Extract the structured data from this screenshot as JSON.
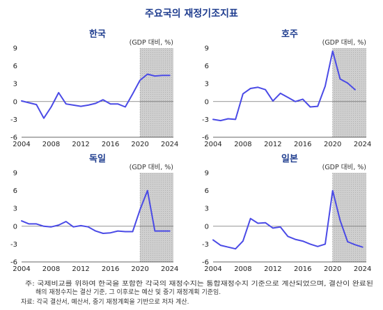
{
  "title": "주요국의 재정기조지표",
  "unit_label": "(GDP 대비, %)",
  "notes": {
    "note_line1": "주:  국제비교를 위하여 한국을 포함한 각국의 재정수지는 통합재정수지 기준으로 계산되었으며, 결산이 완료된",
    "note_line2": "해의 재정수지는 결산 기준, 그 이후로는 예산 및 중기 재정계획 기준임.",
    "source": "자료: 각국 결산서, 예산서, 중기 재정계획을 기반으로 저자 계산."
  },
  "style": {
    "line_color": "#4a4ae6",
    "shade_color": "#cfcfcf",
    "title_color": "#1f3d8f"
  },
  "chart_data": [
    {
      "type": "line",
      "title": "한국",
      "x": [
        2004,
        2005,
        2006,
        2007,
        2008,
        2009,
        2010,
        2011,
        2012,
        2013,
        2014,
        2015,
        2016,
        2017,
        2018,
        2019,
        2020,
        2021,
        2022,
        2023,
        2024
      ],
      "values": [
        0.1,
        -0.2,
        -0.5,
        -2.8,
        -0.9,
        1.5,
        -0.4,
        -0.6,
        -0.8,
        -0.6,
        -0.3,
        0.3,
        -0.4,
        -0.4,
        -0.9,
        1.3,
        3.6,
        4.6,
        4.3,
        4.4,
        4.4
      ],
      "xlim": [
        2004,
        2024.5
      ],
      "ylim": [
        -6,
        9
      ],
      "xticks": [
        2004,
        2008,
        2012,
        2016,
        2020,
        2024
      ],
      "yticks": [
        -6,
        -3,
        0,
        3,
        6,
        9
      ],
      "shaded_from": 2020,
      "grid": false
    },
    {
      "type": "line",
      "title": "호주",
      "x": [
        2004,
        2005,
        2006,
        2007,
        2008,
        2009,
        2010,
        2011,
        2012,
        2013,
        2014,
        2015,
        2016,
        2017,
        2018,
        2019,
        2020,
        2021,
        2022,
        2023
      ],
      "values": [
        -3.0,
        -3.2,
        -2.9,
        -3.0,
        1.3,
        2.2,
        2.4,
        2.0,
        0.1,
        1.4,
        0.7,
        0.0,
        0.4,
        -0.9,
        -0.8,
        2.6,
        8.5,
        3.8,
        3.1,
        2.0
      ],
      "xlim": [
        2004,
        2024.5
      ],
      "ylim": [
        -6,
        9
      ],
      "xticks": [
        2004,
        2008,
        2012,
        2016,
        2020,
        2024
      ],
      "yticks": [
        -6,
        -3,
        0,
        3,
        6,
        9
      ],
      "shaded_from": 2020,
      "grid": false
    },
    {
      "type": "line",
      "title": "독일",
      "x": [
        2004,
        2005,
        2006,
        2007,
        2008,
        2009,
        2010,
        2011,
        2012,
        2013,
        2014,
        2015,
        2016,
        2017,
        2018,
        2019,
        2020,
        2021,
        2022,
        2023,
        2024
      ],
      "values": [
        0.9,
        0.4,
        0.4,
        0.0,
        -0.1,
        0.2,
        0.8,
        -0.1,
        0.1,
        -0.1,
        -0.8,
        -1.2,
        -1.1,
        -0.8,
        -0.9,
        -0.9,
        2.8,
        6.0,
        -0.8,
        -0.8,
        -0.8
      ],
      "xlim": [
        2004,
        2024.5
      ],
      "ylim": [
        -6,
        9
      ],
      "xticks": [
        2004,
        2008,
        2012,
        2016,
        2020,
        2024
      ],
      "yticks": [
        -6,
        -3,
        0,
        3,
        6,
        9
      ],
      "shaded_from": 2020,
      "grid": false
    },
    {
      "type": "line",
      "title": "일본",
      "x": [
        2004,
        2005,
        2006,
        2007,
        2008,
        2009,
        2010,
        2011,
        2012,
        2013,
        2014,
        2015,
        2016,
        2017,
        2018,
        2019,
        2020,
        2021,
        2022,
        2023,
        2024
      ],
      "values": [
        -2.3,
        -3.2,
        -3.5,
        -3.8,
        -2.5,
        1.3,
        0.5,
        0.6,
        -0.3,
        -0.1,
        -1.7,
        -2.2,
        -2.5,
        -3.0,
        -3.4,
        -3.0,
        6.0,
        1.0,
        -2.6,
        -3.1,
        -3.5
      ],
      "xlim": [
        2004,
        2024.5
      ],
      "ylim": [
        -6,
        9
      ],
      "xticks": [
        2004,
        2008,
        2012,
        2016,
        2020,
        2024
      ],
      "yticks": [
        -6,
        -3,
        0,
        3,
        6,
        9
      ],
      "shaded_from": 2020,
      "grid": false
    }
  ]
}
